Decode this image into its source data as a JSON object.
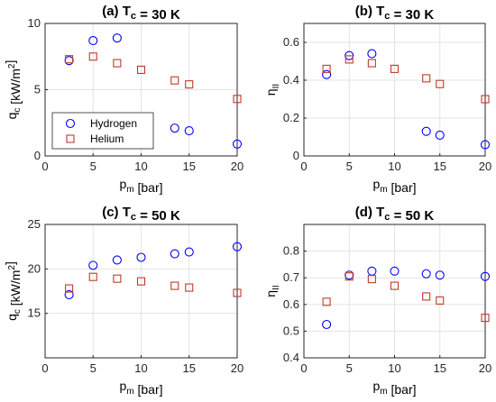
{
  "chart_data": [
    {
      "type": "scatter",
      "title": "(a) T_c = 30 K",
      "xlabel": "p_m [bar]",
      "ylabel": "q_c [kW/m^2]",
      "xlim": [
        0,
        20
      ],
      "ylim": [
        0,
        10
      ],
      "xticks": [
        0,
        5,
        10,
        15,
        20
      ],
      "yticks": [
        0,
        5,
        10
      ],
      "grid": true,
      "legend": "lower-left",
      "series": [
        {
          "name": "Hydrogen",
          "marker": "circle",
          "color": "#0000ff",
          "x": [
            2.5,
            5,
            7.5,
            13.5,
            15,
            20
          ],
          "y": [
            7.2,
            8.7,
            8.9,
            2.1,
            1.9,
            0.9
          ]
        },
        {
          "name": "Helium",
          "marker": "square",
          "color": "#c0392b",
          "x": [
            2.5,
            5,
            7.5,
            10,
            13.5,
            15,
            20
          ],
          "y": [
            7.3,
            7.5,
            7.0,
            6.5,
            5.7,
            5.4,
            4.3
          ]
        }
      ]
    },
    {
      "type": "scatter",
      "title": "(b) T_c = 30 K",
      "xlabel": "p_m [bar]",
      "ylabel": "η_II",
      "xlim": [
        0,
        20
      ],
      "ylim": [
        0,
        0.7
      ],
      "xticks": [
        0,
        5,
        10,
        15,
        20
      ],
      "yticks": [
        0,
        0.2,
        0.4,
        0.6
      ],
      "grid": true,
      "series": [
        {
          "name": "Hydrogen",
          "marker": "circle",
          "color": "#0000ff",
          "x": [
            2.5,
            5,
            7.5,
            13.5,
            15,
            20
          ],
          "y": [
            0.43,
            0.53,
            0.54,
            0.13,
            0.11,
            0.06
          ]
        },
        {
          "name": "Helium",
          "marker": "square",
          "color": "#c0392b",
          "x": [
            2.5,
            5,
            7.5,
            10,
            13.5,
            15,
            20
          ],
          "y": [
            0.46,
            0.51,
            0.49,
            0.46,
            0.41,
            0.38,
            0.3
          ]
        }
      ]
    },
    {
      "type": "scatter",
      "title": "(c) T_c = 50 K",
      "xlabel": "p_m [bar]",
      "ylabel": "q_c [kW/m^2]",
      "xlim": [
        0,
        20
      ],
      "ylim": [
        10,
        25
      ],
      "xticks": [
        0,
        5,
        10,
        15,
        20
      ],
      "yticks": [
        15,
        20,
        25
      ],
      "grid": true,
      "series": [
        {
          "name": "Hydrogen",
          "marker": "circle",
          "color": "#0000ff",
          "x": [
            2.5,
            5,
            7.5,
            10,
            13.5,
            15,
            20
          ],
          "y": [
            17.1,
            20.4,
            21.0,
            21.3,
            21.7,
            21.9,
            22.5
          ]
        },
        {
          "name": "Helium",
          "marker": "square",
          "color": "#c0392b",
          "x": [
            2.5,
            5,
            7.5,
            10,
            13.5,
            15,
            20
          ],
          "y": [
            17.8,
            19.1,
            18.9,
            18.6,
            18.1,
            17.9,
            17.3
          ]
        }
      ]
    },
    {
      "type": "scatter",
      "title": "(d) T_c = 50 K",
      "xlabel": "p_m [bar]",
      "ylabel": "η_II",
      "xlim": [
        0,
        20
      ],
      "ylim": [
        0.4,
        0.9
      ],
      "xticks": [
        0,
        5,
        10,
        15,
        20
      ],
      "yticks": [
        0.4,
        0.5,
        0.6,
        0.7,
        0.8
      ],
      "grid": true,
      "series": [
        {
          "name": "Hydrogen",
          "marker": "circle",
          "color": "#0000ff",
          "x": [
            2.5,
            5,
            7.5,
            10,
            13.5,
            15,
            20
          ],
          "y": [
            0.525,
            0.71,
            0.725,
            0.725,
            0.715,
            0.71,
            0.705
          ]
        },
        {
          "name": "Helium",
          "marker": "square",
          "color": "#c0392b",
          "x": [
            2.5,
            5,
            7.5,
            10,
            13.5,
            15,
            20
          ],
          "y": [
            0.61,
            0.705,
            0.695,
            0.67,
            0.63,
            0.615,
            0.55
          ]
        }
      ]
    }
  ]
}
